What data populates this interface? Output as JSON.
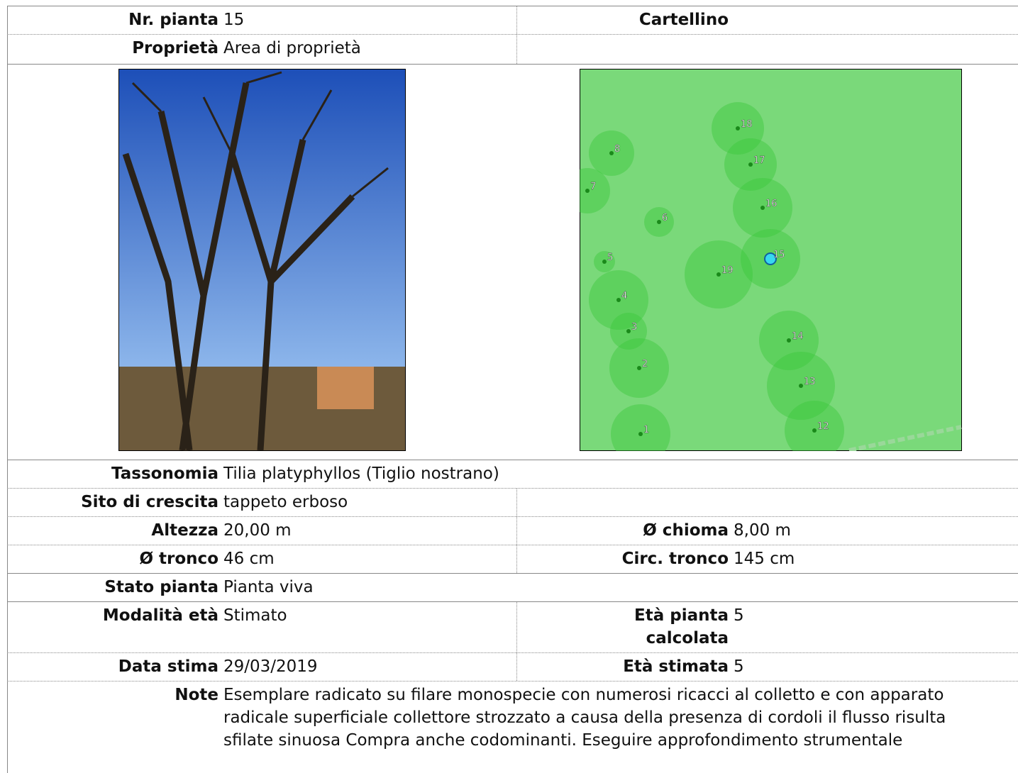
{
  "nr_pianta": {
    "label": "Nr. pianta",
    "value": "15"
  },
  "cartellino": {
    "label": "Cartellino"
  },
  "proprieta": {
    "label": "Proprietà",
    "value": "Area di proprietà"
  },
  "map": {
    "points": [
      "18",
      "8",
      "17",
      "7",
      "16",
      "6",
      "5",
      "15",
      "19",
      "4",
      "3",
      "14",
      "2",
      "13",
      "12",
      "1"
    ]
  },
  "tassonomia": {
    "label": "Tassonomia",
    "value": "Tilia platyphyllos (Tiglio nostrano)"
  },
  "sito": {
    "label": "Sito di crescita",
    "value": "tappeto erboso"
  },
  "altezza": {
    "label": "Altezza",
    "value": "20,00 m"
  },
  "chioma": {
    "label": "Ø chioma",
    "value": "8,00 m"
  },
  "tronco": {
    "label": "Ø tronco",
    "value": "46 cm"
  },
  "circ": {
    "label": "Circ. tronco",
    "value": "145 cm"
  },
  "stato": {
    "label": "Stato pianta",
    "value": "Pianta viva"
  },
  "modalita": {
    "label": "Modalità età",
    "value": "Stimato"
  },
  "eta_calc": {
    "label": "Età pianta calcolata",
    "value": "5"
  },
  "data_stima": {
    "label": "Data stima",
    "value": "29/03/2019"
  },
  "eta_stimata": {
    "label": "Età stimata",
    "value": "5"
  },
  "note": {
    "label": "Note",
    "value": "Esemplare radicato su filare monospecie con numerosi ricacci al colletto e con apparato radicale superficiale collettore strozzato a causa della presenza di cordoli il flusso risulta sfilate sinuosa Compra anche codominanti. Eseguire approfondimento strumentale"
  }
}
